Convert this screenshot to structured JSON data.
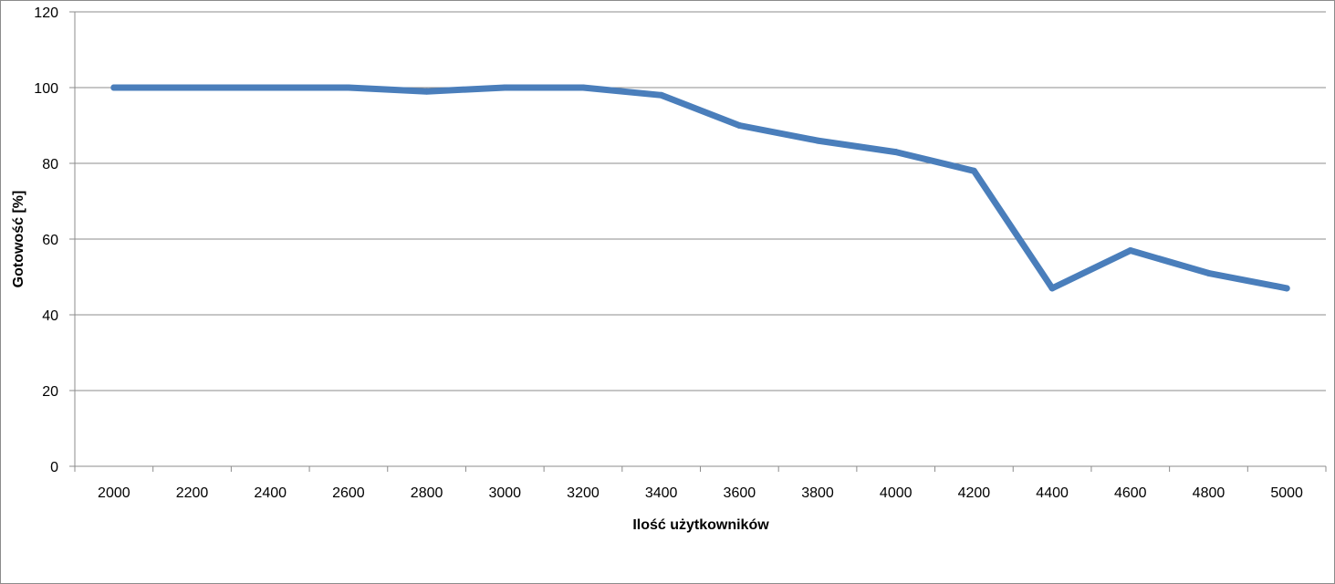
{
  "chart_data": {
    "type": "line",
    "title": "",
    "xlabel": "Ilość użytkowników",
    "ylabel": "Gotowość [%]",
    "x": [
      "2000",
      "2200",
      "2400",
      "2600",
      "2800",
      "3000",
      "3200",
      "3400",
      "3600",
      "3800",
      "4000",
      "4200",
      "4400",
      "4600",
      "4800",
      "5000"
    ],
    "y_ticks": [
      "0",
      "20",
      "40",
      "60",
      "80",
      "100",
      "120"
    ],
    "ylim": [
      0,
      120
    ],
    "grid": true,
    "legend": "none",
    "series": [
      {
        "values": [
          100,
          100,
          100,
          100,
          99,
          100,
          100,
          98,
          90,
          86,
          83,
          78,
          47,
          57,
          51,
          47
        ],
        "color": "#4a7ebb"
      }
    ]
  }
}
